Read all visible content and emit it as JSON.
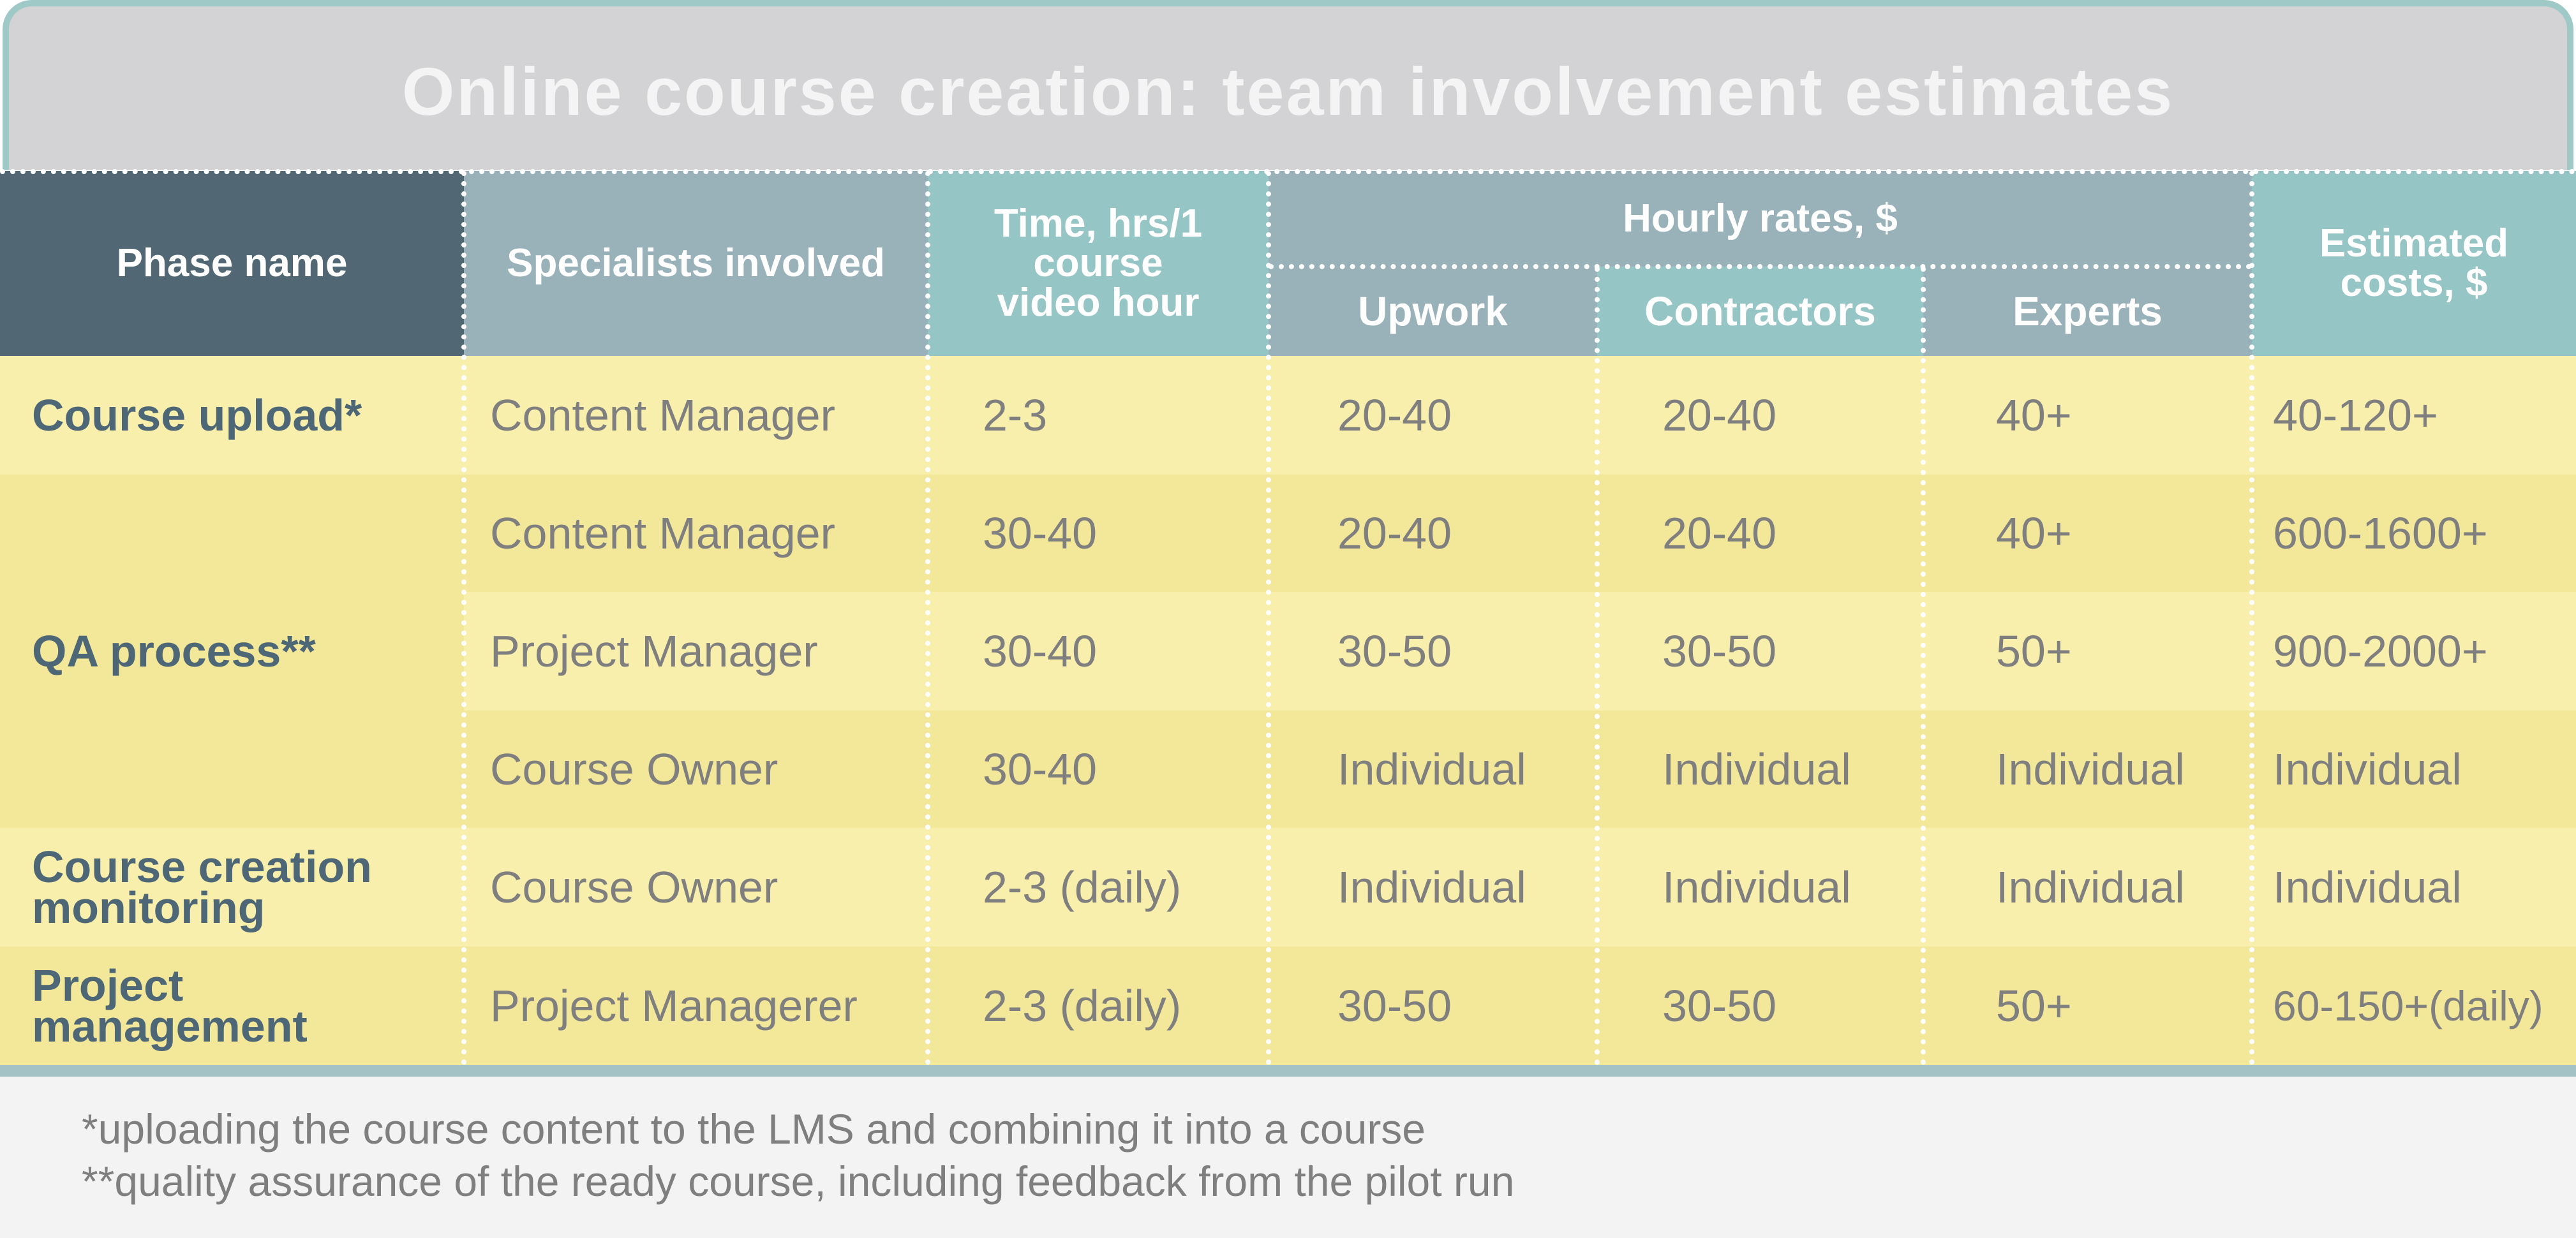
{
  "title": "Online course creation: team involvement estimates",
  "colors": {
    "header_dark": "#516874",
    "header_gray": "#99b2ba",
    "header_teal": "#95c5c4",
    "row_light": "#f8efac",
    "row_dark": "#f3e79a",
    "phase_text": "#4d6776",
    "cell_text": "#7f7f7f",
    "title_bg": "#d3d3d5",
    "frame_border": "#9fc9c7"
  },
  "headers": {
    "phase_name": "Phase name",
    "specialists": "Specialists involved",
    "time": "Time, hrs/1 course video hour",
    "hourly_rates": "Hourly rates, $",
    "upwork": "Upwork",
    "contractors": "Contractors",
    "experts": "Experts",
    "estimated_costs": "Estimated costs, $"
  },
  "phases": {
    "course_upload": "Course upload*",
    "qa_process": "QA process**",
    "monitoring": "Course creation monitoring",
    "project_management": "Project management"
  },
  "rows": [
    {
      "specialist": "Content Manager",
      "time": "2-3",
      "upwork": "20-40",
      "contractors": "20-40",
      "experts": "40+",
      "cost": "40-120+"
    },
    {
      "specialist": "Content Manager",
      "time": "30-40",
      "upwork": "20-40",
      "contractors": "20-40",
      "experts": "40+",
      "cost": "600-1600+"
    },
    {
      "specialist": "Project Manager",
      "time": "30-40",
      "upwork": "30-50",
      "contractors": "30-50",
      "experts": "50+",
      "cost": "900-2000+"
    },
    {
      "specialist": "Course Owner",
      "time": "30-40",
      "upwork": "Individual",
      "contractors": "Individual",
      "experts": "Individual",
      "cost": "Individual"
    },
    {
      "specialist": "Course Owner",
      "time": "2-3 (daily)",
      "upwork": "Individual",
      "contractors": "Individual",
      "experts": "Individual",
      "cost": "Individual"
    },
    {
      "specialist": "Project Managerer",
      "time": "2-3 (daily)",
      "upwork": "30-50",
      "contractors": "30-50",
      "experts": "50+",
      "cost": "60-150+(daily)"
    }
  ],
  "footnotes": {
    "note1": "*uploading the course content to the LMS and combining it into a course",
    "note2": "**quality assurance of the ready course, including feedback from the pilot run"
  }
}
